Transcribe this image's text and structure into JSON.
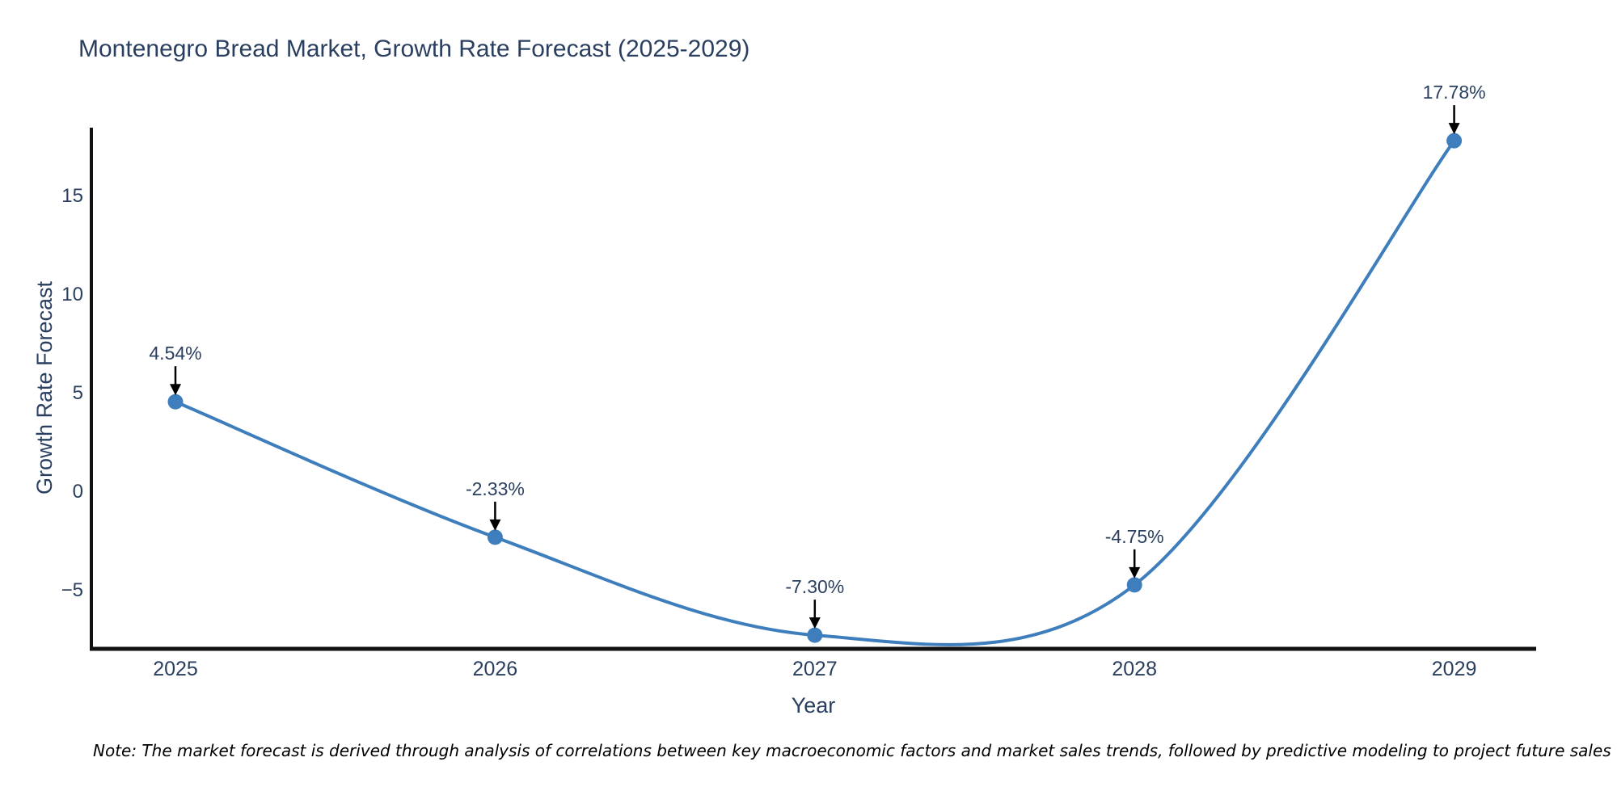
{
  "chart": {
    "title": "Montenegro Bread Market, Growth Rate Forecast (2025-2029)",
    "xlabel": "Year",
    "ylabel": "Growth Rate Forecast",
    "note": "Note: The market forecast is derived through analysis of correlations between key macroeconomic factors and market sales trends, followed by predictive modeling to project future sales",
    "colors": {
      "line": "#3e7ebc",
      "marker": "#3e7ebc",
      "axis": "#111111",
      "text": "#2a3f5f",
      "annotation_arrow": "#000000",
      "background": "#ffffff"
    }
  },
  "chart_data": {
    "type": "line",
    "line_shape": "spline",
    "x": [
      2025,
      2026,
      2027,
      2028,
      2029
    ],
    "values": [
      4.54,
      -2.33,
      -7.3,
      -4.75,
      17.78
    ],
    "point_labels": [
      "4.54%",
      "-2.33%",
      "-7.30%",
      "-4.75%",
      "17.78%"
    ],
    "series_name": "Growth Rate Forecast",
    "title": "Montenegro Bread Market, Growth Rate Forecast (2025-2029)",
    "xlabel": "Year",
    "ylabel": "Growth Rate Forecast",
    "xtick_labels": [
      "2025",
      "2026",
      "2027",
      "2028",
      "2029"
    ],
    "yticks": [
      15,
      10,
      5,
      0,
      -5
    ],
    "ytick_labels": [
      "15",
      "10",
      "5",
      "0",
      "−5"
    ],
    "ylim": [
      -8.0,
      18.4
    ],
    "grid": false,
    "legend": "none",
    "annotations": "value labels with downward arrows pointing at each data point"
  }
}
